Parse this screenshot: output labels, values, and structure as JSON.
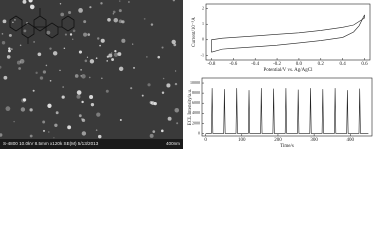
{
  "sem_image": {
    "caption": "S-4800 10.0kV 8.5mm x120k SE(M) 5/13/2013",
    "scale": "400nm"
  },
  "chart_data": [
    {
      "type": "line",
      "xlabel": "Potential/V vs. Ag/AgCl",
      "ylabel": "Current/10⁻⁵A",
      "x": [
        -0.8,
        -0.7,
        -0.6,
        -0.4,
        -0.2,
        0.0,
        0.2,
        0.4,
        0.5,
        0.55,
        0.6,
        0.6,
        0.5,
        0.4,
        0.2,
        0.0,
        -0.2,
        -0.4,
        -0.6,
        -0.7,
        -0.8,
        -0.8
      ],
      "series": [
        {
          "color": "#222222",
          "values": [
            -0.8,
            -0.6,
            -0.55,
            -0.45,
            -0.35,
            -0.2,
            -0.05,
            0.15,
            0.5,
            0.9,
            1.6,
            1.4,
            0.95,
            0.8,
            0.6,
            0.45,
            0.35,
            0.25,
            0.15,
            0.1,
            0.0,
            -0.8
          ]
        }
      ],
      "xlim": [
        -0.85,
        0.65
      ],
      "xticks": [
        -0.8,
        -0.6,
        -0.4,
        -0.2,
        {
          "value": 0,
          "label": "0.0"
        },
        0.2,
        0.4,
        0.6
      ],
      "ylim": [
        -1.3,
        2.3
      ],
      "yticks": [
        -1,
        0,
        1,
        2
      ]
    },
    {
      "type": "line",
      "xlabel": "Time/s",
      "ylabel": "ECL Intensity/a.u.",
      "x": [
        0,
        16,
        18,
        20,
        50,
        52,
        54,
        84,
        86,
        88,
        118,
        120,
        122,
        152,
        154,
        156,
        186,
        188,
        190,
        220,
        222,
        224,
        254,
        256,
        258,
        288,
        290,
        292,
        322,
        324,
        326,
        356,
        358,
        360,
        390,
        392,
        394,
        424,
        426,
        428,
        450
      ],
      "series": [
        {
          "color": "#222222",
          "values": [
            0,
            0,
            9000,
            0,
            0,
            8800,
            0,
            0,
            9000,
            0,
            0,
            8600,
            0,
            0,
            9000,
            0,
            0,
            8900,
            0,
            0,
            9000,
            0,
            0,
            8700,
            0,
            0,
            9000,
            0,
            0,
            8800,
            0,
            0,
            9000,
            0,
            0,
            8600,
            0,
            0,
            8900,
            0,
            0
          ]
        }
      ],
      "xlim": [
        -10,
        460
      ],
      "xticks": [
        0,
        100,
        200,
        300,
        400
      ],
      "ylim": [
        -500,
        11000
      ],
      "yticks": [
        0,
        2000,
        4000,
        6000,
        8000,
        10000
      ]
    }
  ]
}
